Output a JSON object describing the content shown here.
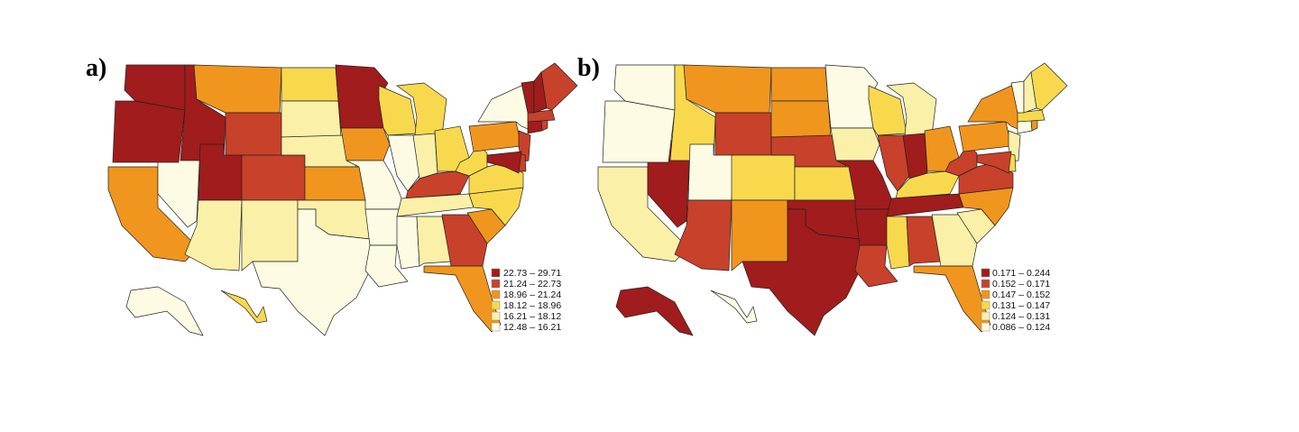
{
  "colors": [
    "#fdfbe3",
    "#faf0a8",
    "#f8d94e",
    "#f0961e",
    "#c8412a",
    "#a11c1c"
  ],
  "panels": [
    {
      "label": "a)",
      "legend": [
        "22.73 – 29.71",
        "21.24 – 22.73",
        "18.96 – 21.24",
        "18.12 – 18.96",
        "16.21 – 18.12",
        "12.48 – 16.21"
      ],
      "classes": {
        "WA": 5,
        "OR": 5,
        "CA": 3,
        "NV": 0,
        "ID": 5,
        "MT": 3,
        "WY": 4,
        "UT": 5,
        "CO": 4,
        "AZ": 1,
        "NM": 1,
        "ND": 2,
        "SD": 1,
        "NE": 1,
        "KS": 3,
        "OK": 1,
        "TX": 0,
        "MN": 5,
        "IA": 3,
        "MO": 0,
        "AR": 0,
        "LA": 0,
        "WI": 2,
        "IL": 0,
        "MI": 2,
        "IN": 1,
        "OH": 2,
        "KY": 4,
        "TN": 1,
        "MS": 0,
        "AL": 1,
        "GA": 4,
        "FL": 3,
        "SC": 3,
        "NC": 2,
        "VA": 2,
        "WV": 2,
        "PA": 3,
        "NY": 0,
        "VT": 5,
        "NH": 5,
        "ME": 4,
        "MA": 4,
        "CT": 5,
        "RI": 4,
        "NJ": 4,
        "DE": 4,
        "MD": 5,
        "AK": 0,
        "HI": 2
      }
    },
    {
      "label": "b)",
      "legend": [
        "0.171 – 0.244",
        "0.152 – 0.171",
        "0.147 – 0.152",
        "0.131 – 0.147",
        "0.124 – 0.131",
        "0.086 – 0.124"
      ],
      "classes": {
        "WA": 0,
        "OR": 0,
        "CA": 1,
        "NV": 5,
        "ID": 2,
        "MT": 3,
        "WY": 4,
        "UT": 0,
        "CO": 2,
        "AZ": 4,
        "NM": 3,
        "ND": 3,
        "SD": 3,
        "NE": 4,
        "KS": 2,
        "OK": 5,
        "TX": 5,
        "MN": 0,
        "IA": 1,
        "MO": 5,
        "AR": 5,
        "LA": 4,
        "WI": 2,
        "IL": 4,
        "MI": 1,
        "IN": 5,
        "OH": 3,
        "KY": 2,
        "TN": 5,
        "MS": 2,
        "AL": 4,
        "GA": 1,
        "FL": 3,
        "SC": 1,
        "NC": 3,
        "VA": 4,
        "WV": 4,
        "PA": 3,
        "NY": 3,
        "VT": 0,
        "NH": 1,
        "ME": 2,
        "MA": 2,
        "CT": 0,
        "RI": 3,
        "NJ": 1,
        "DE": 2,
        "MD": 4,
        "AK": 5,
        "HI": 0
      }
    }
  ]
}
